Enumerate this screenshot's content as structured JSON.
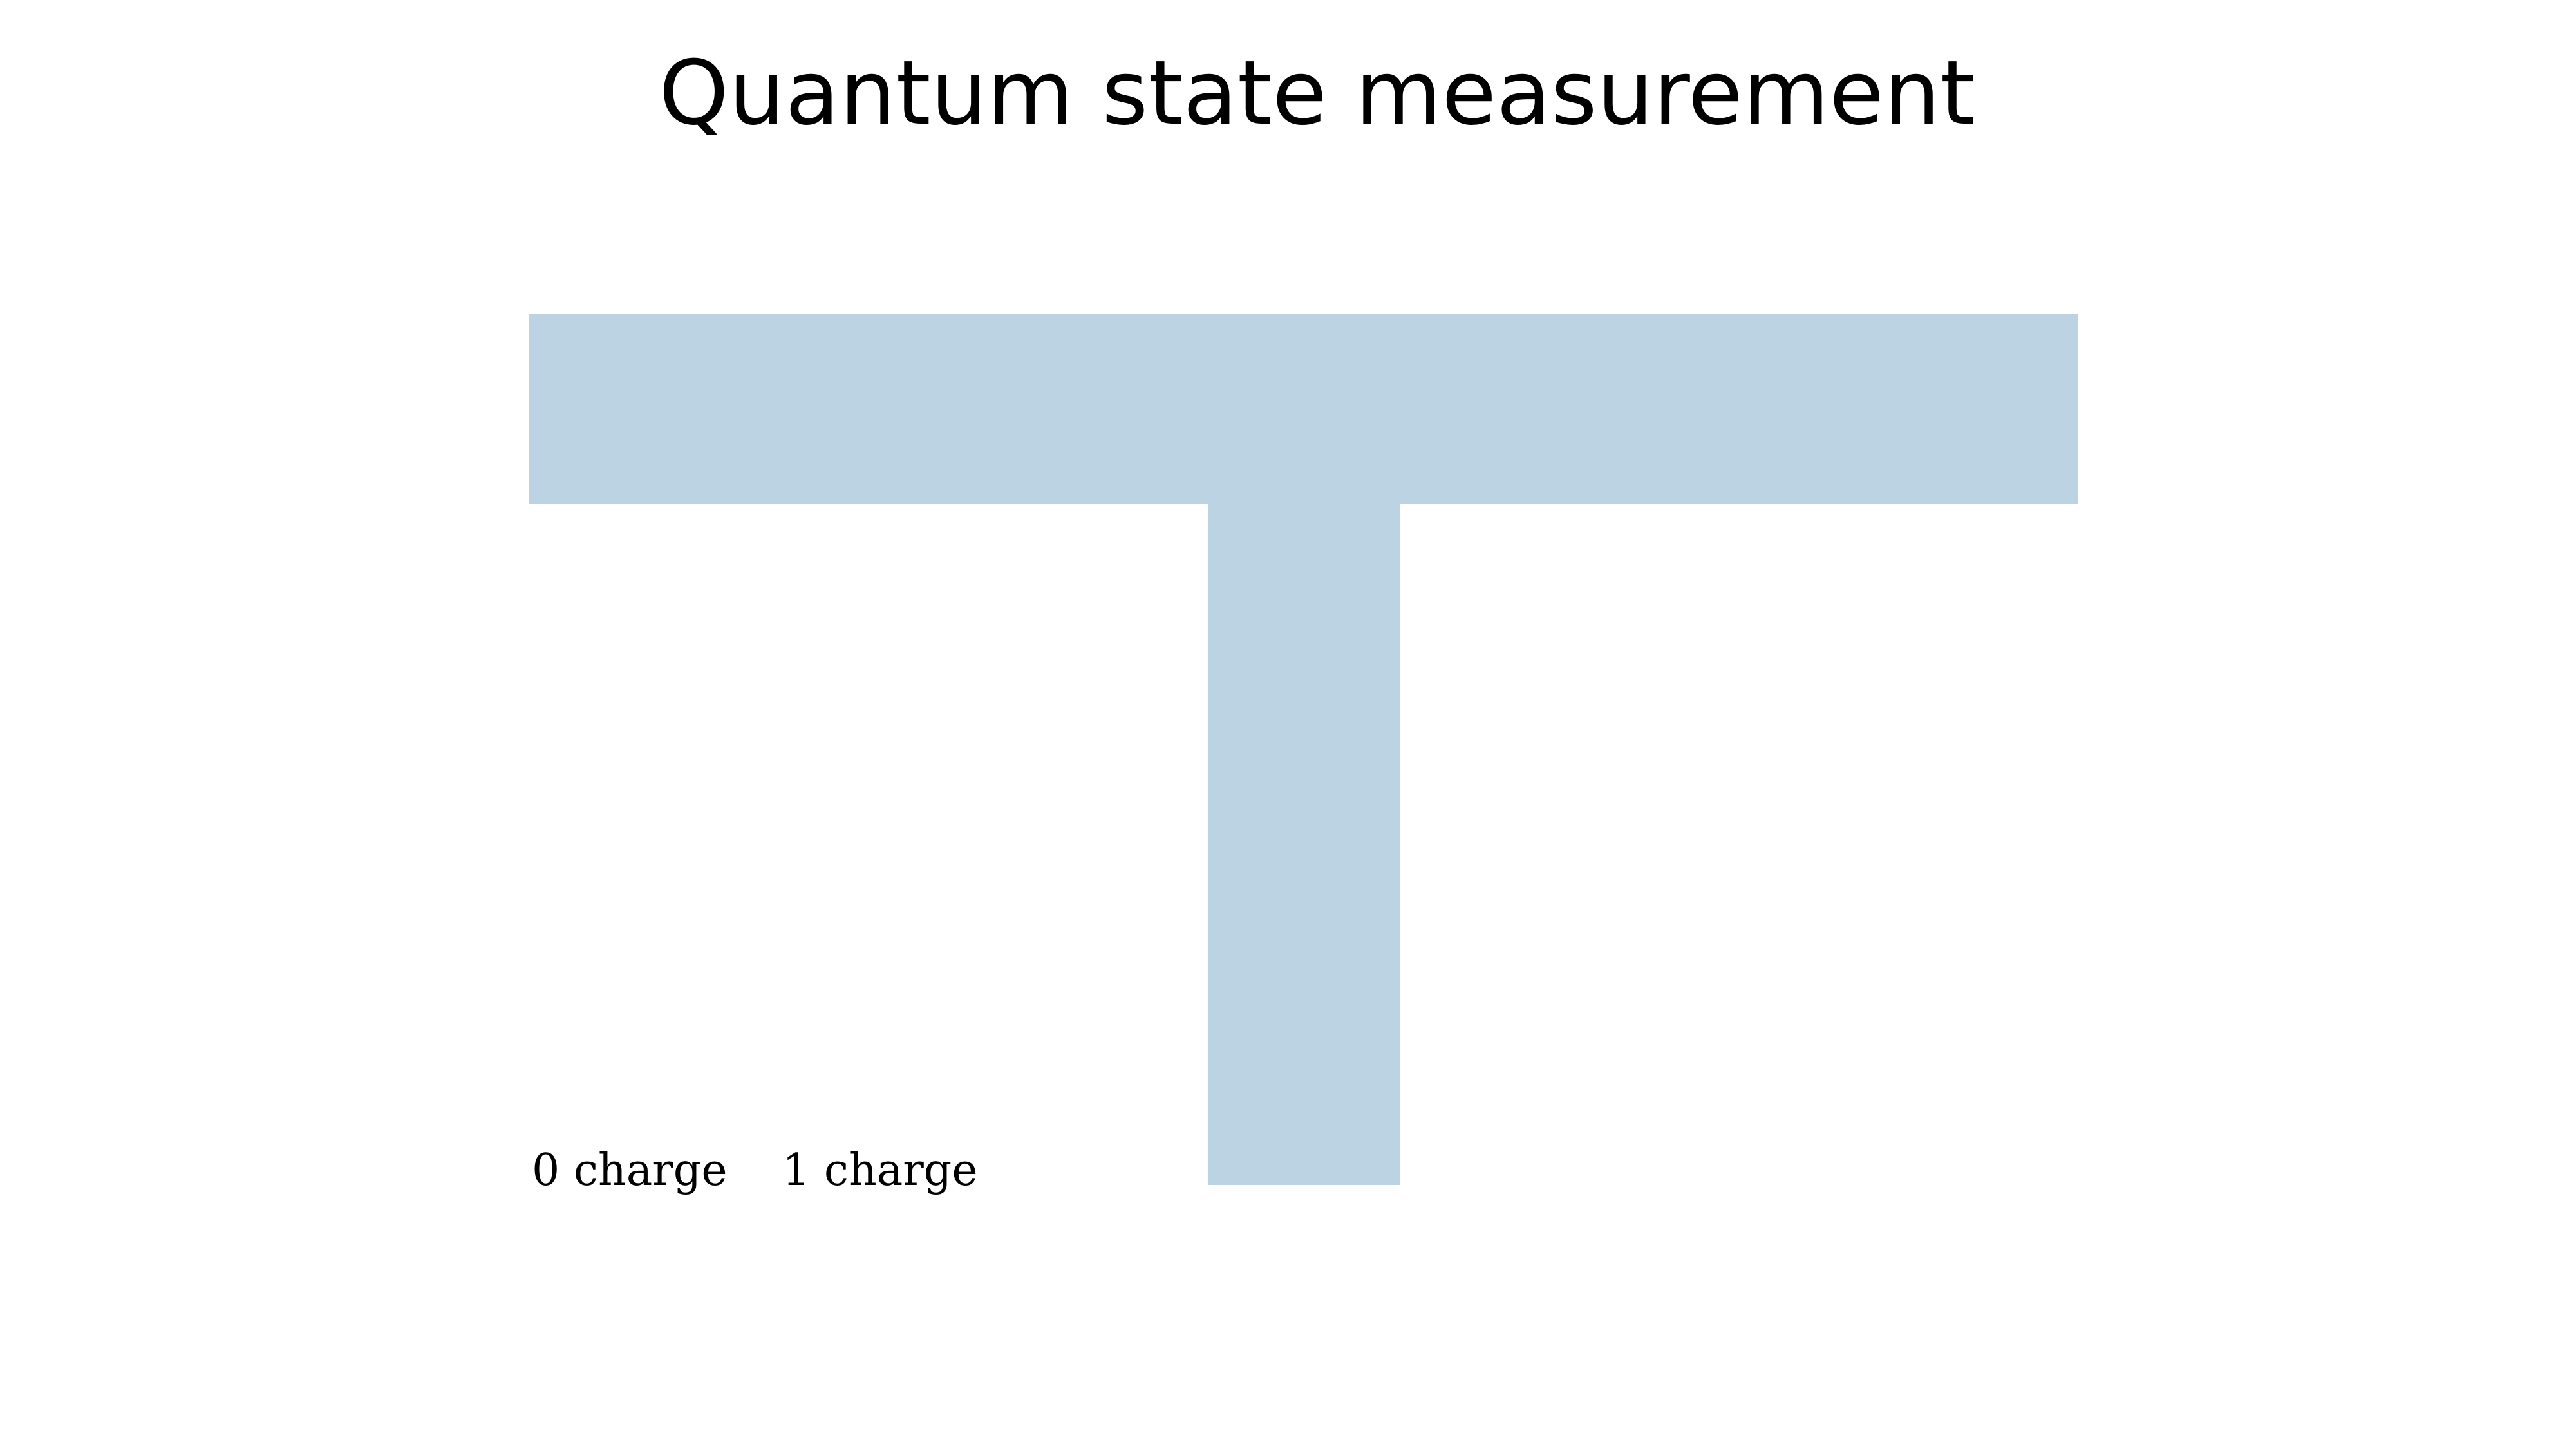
{
  "title": "Quantum state measurement",
  "channel": {
    "color": "#bcd3e3",
    "shape": "T-shaped channel"
  },
  "labels": [
    "0 charge",
    "1 charge"
  ]
}
